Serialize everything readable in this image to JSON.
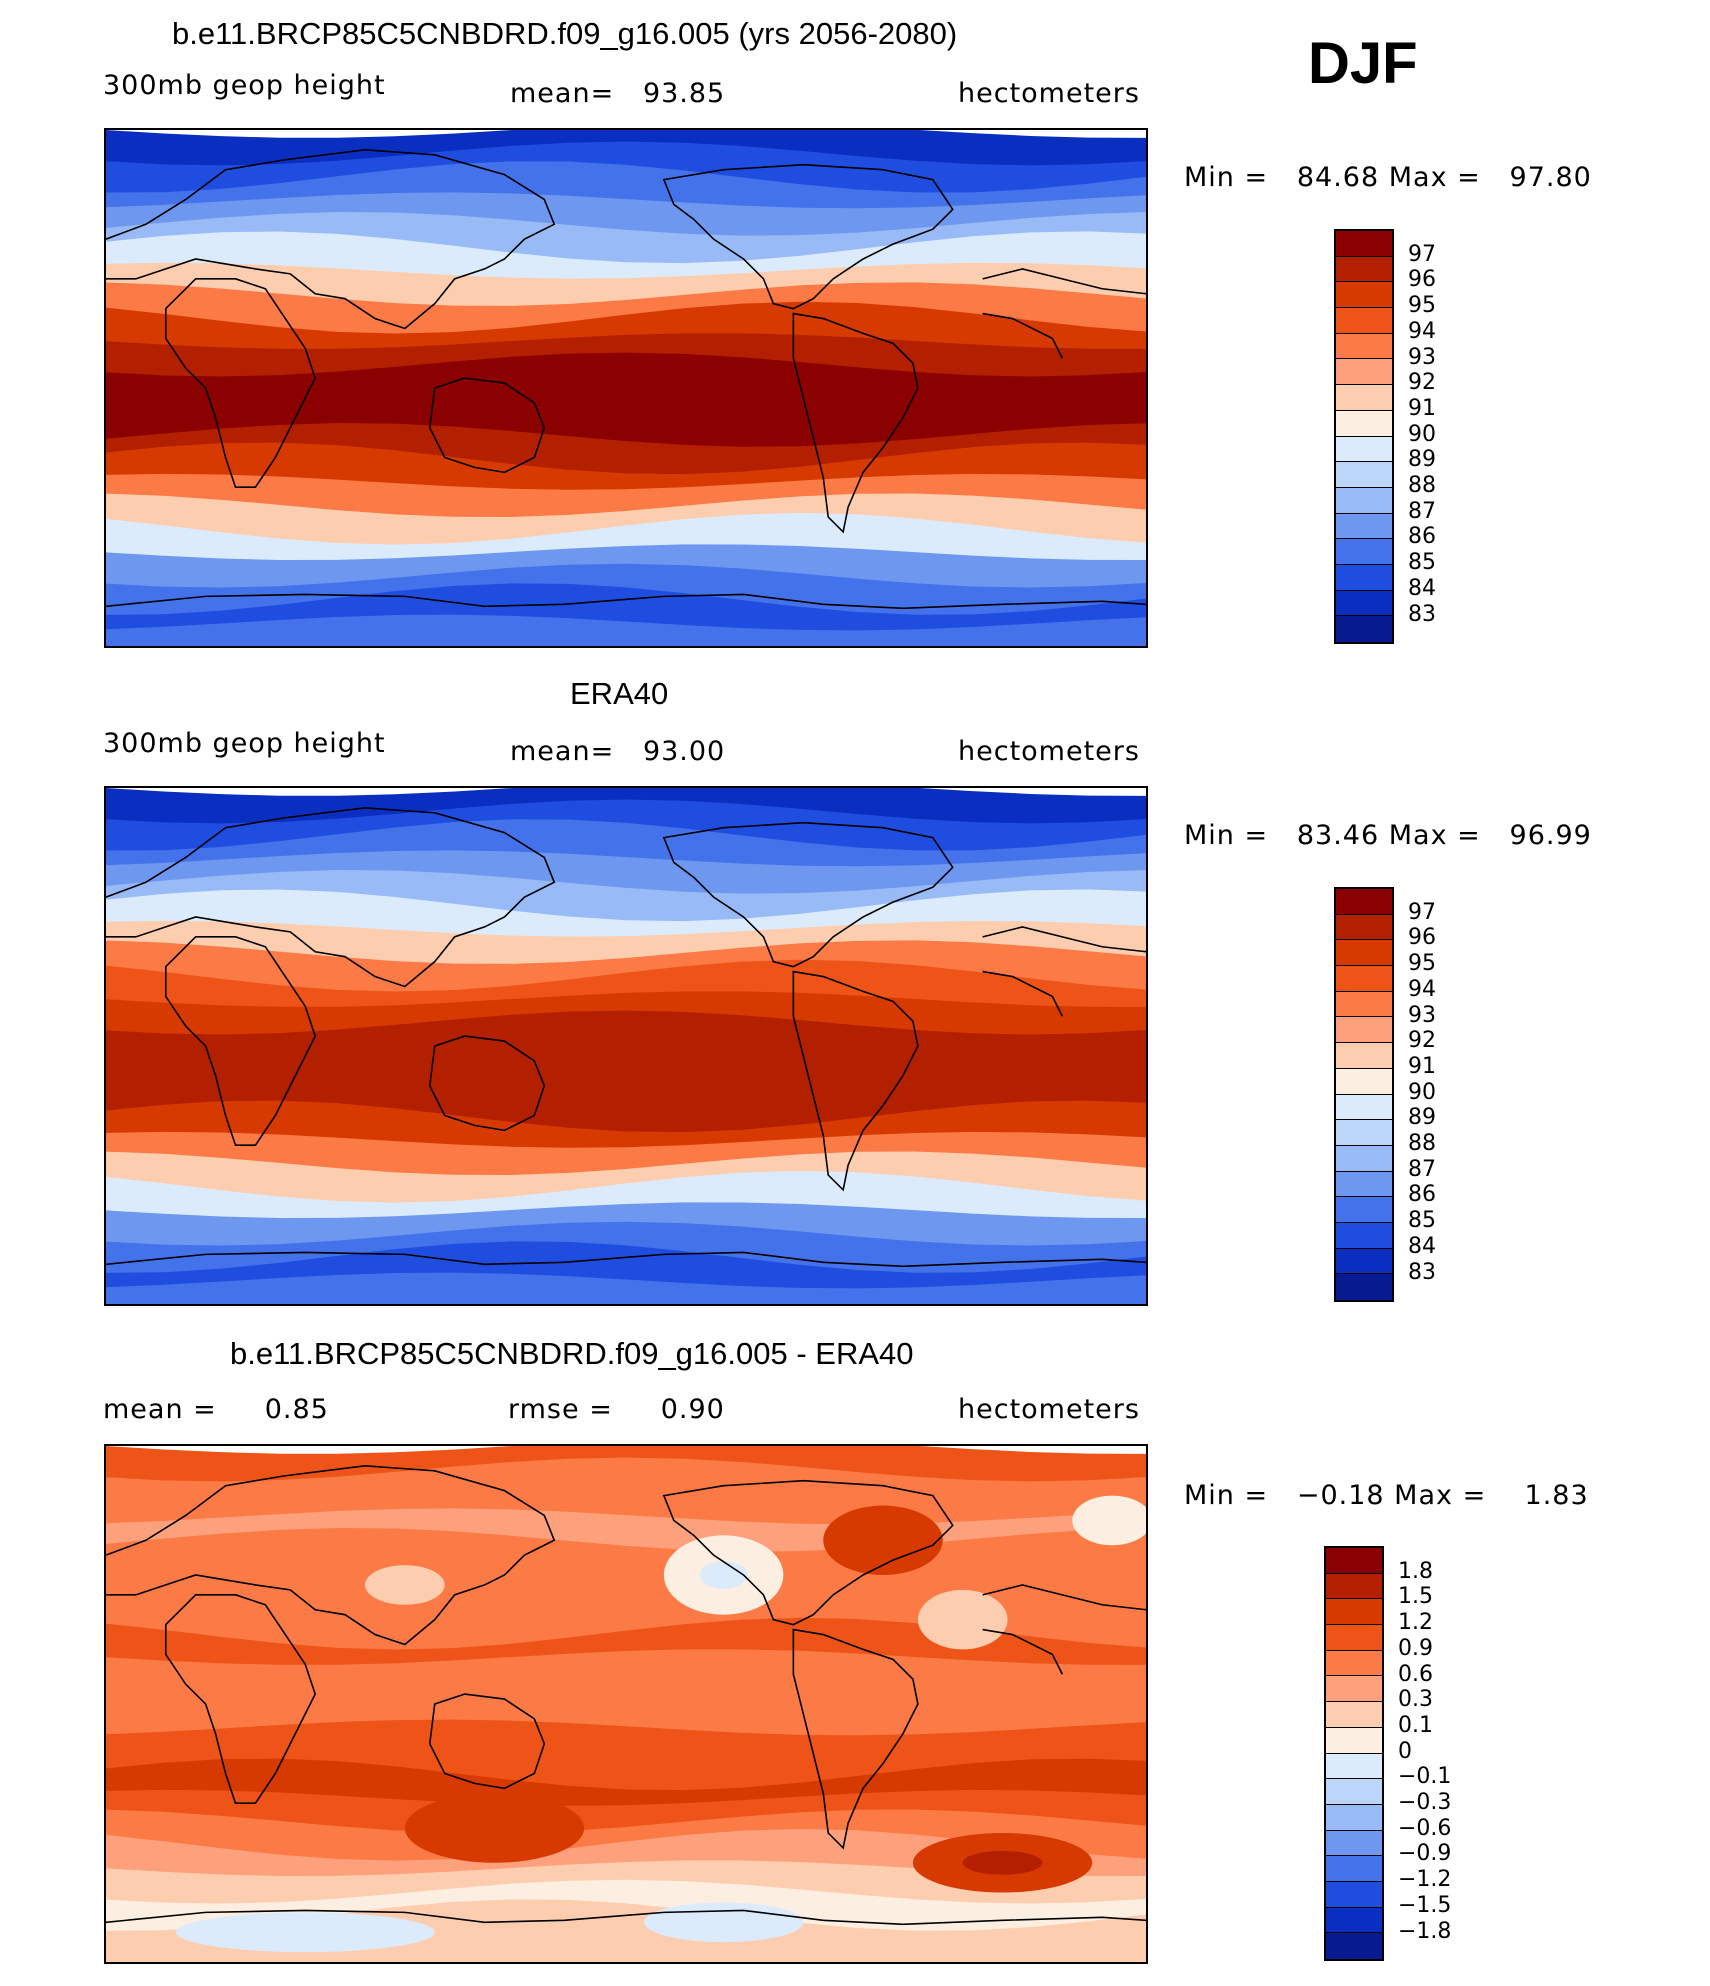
{
  "season": "DJF",
  "panels": [
    {
      "title": "b.e11.BRCP85C5CNBDRD.f09_g16.005 (yrs 2056-2080)",
      "left_label": "300mb geop height",
      "center_label": "mean=   93.85",
      "units": "hectometers",
      "min_max": "Min =   84.68 Max =   97.80",
      "colorbar": {
        "ticks": [
          "97",
          "96",
          "95",
          "94",
          "93",
          "92",
          "91",
          "90",
          "89",
          "88",
          "87",
          "86",
          "85",
          "84",
          "83"
        ],
        "colors": [
          "#8b0000",
          "#b22000",
          "#d63a00",
          "#ee5418",
          "#fb7a45",
          "#fda07c",
          "#fdcdb0",
          "#fdeee2",
          "#dcebfb",
          "#bcd6fa",
          "#98baf6",
          "#6e98f0",
          "#4472ea",
          "#1f4de0",
          "#0a2fc0",
          "#081a90"
        ]
      },
      "bands": [
        "#0a2fc0",
        "#1f4de0",
        "#4472ea",
        "#6e98f0",
        "#98baf6",
        "#dcebfb",
        "#fdcdb0",
        "#fb7a45",
        "#d63a00",
        "#b22000",
        "#8b0000",
        "#8b0000",
        "#8b0000",
        "#b22000",
        "#d63a00",
        "#fb7a45",
        "#fdcdb0",
        "#dcebfb",
        "#6e98f0",
        "#4472ea",
        "#1f4de0",
        "#4472ea"
      ]
    },
    {
      "title": "ERA40",
      "left_label": "300mb geop height",
      "center_label": "mean=   93.00",
      "units": "hectometers",
      "min_max": "Min =   83.46 Max =   96.99",
      "colorbar": {
        "ticks": [
          "97",
          "96",
          "95",
          "94",
          "93",
          "92",
          "91",
          "90",
          "89",
          "88",
          "87",
          "86",
          "85",
          "84",
          "83"
        ],
        "colors": [
          "#8b0000",
          "#b22000",
          "#d63a00",
          "#ee5418",
          "#fb7a45",
          "#fda07c",
          "#fdcdb0",
          "#fdeee2",
          "#dcebfb",
          "#bcd6fa",
          "#98baf6",
          "#6e98f0",
          "#4472ea",
          "#1f4de0",
          "#0a2fc0",
          "#081a90"
        ]
      },
      "bands": [
        "#0a2fc0",
        "#1f4de0",
        "#4472ea",
        "#6e98f0",
        "#98baf6",
        "#dcebfb",
        "#fdcdb0",
        "#fb7a45",
        "#ee5418",
        "#d63a00",
        "#b22000",
        "#b22000",
        "#b22000",
        "#b22000",
        "#d63a00",
        "#fb7a45",
        "#fdcdb0",
        "#dcebfb",
        "#6e98f0",
        "#4472ea",
        "#1f4de0",
        "#4472ea"
      ]
    },
    {
      "title": "b.e11.BRCP85C5CNBDRD.f09_g16.005 - ERA40",
      "left_label": "mean =     0.85",
      "center_label": "rmse =     0.90",
      "units": "hectometers",
      "min_max": "Min =   −0.18 Max =    1.83",
      "colorbar": {
        "ticks": [
          "1.8",
          "1.5",
          "1.2",
          "0.9",
          "0.6",
          "0.3",
          "0.1",
          "0",
          "−0.1",
          "−0.3",
          "−0.6",
          "−0.9",
          "−1.2",
          "−1.5",
          "−1.8"
        ],
        "colors": [
          "#8b0000",
          "#b22000",
          "#d63a00",
          "#ee5418",
          "#fb7a45",
          "#fda07c",
          "#fdcdb0",
          "#fdeee2",
          "#dcebfb",
          "#bcd6fa",
          "#98baf6",
          "#6e98f0",
          "#4472ea",
          "#1f4de0",
          "#0a2fc0",
          "#081a90"
        ]
      },
      "bands": [
        "#ee5418",
        "#fb7a45",
        "#fb7a45",
        "#fda07c",
        "#fb7a45",
        "#fb7a45",
        "#fb7a45",
        "#fb7a45",
        "#ee5418",
        "#fb7a45",
        "#fb7a45",
        "#fb7a45",
        "#ee5418",
        "#ee5418",
        "#d63a00",
        "#ee5418",
        "#fb7a45",
        "#fda07c",
        "#fdcdb0",
        "#fdeee2",
        "#fdcdb0",
        "#fdcdb0"
      ]
    }
  ]
}
